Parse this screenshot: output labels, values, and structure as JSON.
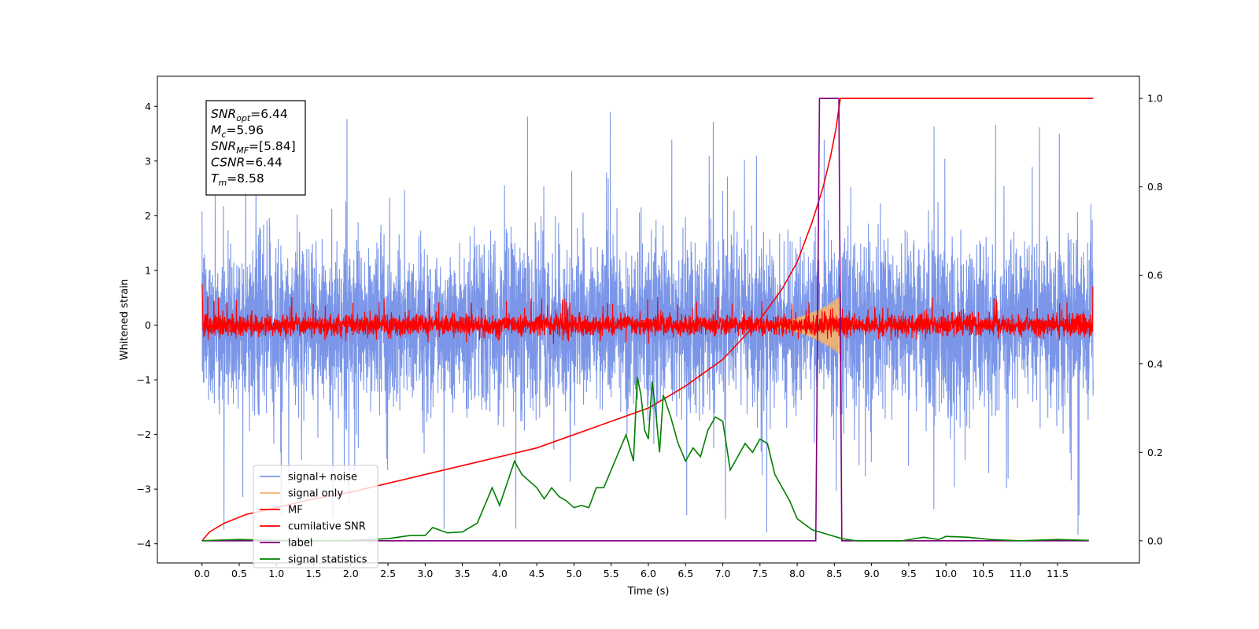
{
  "chart_data": {
    "type": "line",
    "title": "",
    "xlabel": "Time (s)",
    "ylabel": "Whitened strain",
    "xlim": [
      -0.6,
      12.6
    ],
    "ylim": [
      -4.35,
      4.55
    ],
    "y2lim": [
      -0.05,
      1.05
    ],
    "x_ticks": [
      0.0,
      0.5,
      1.0,
      1.5,
      2.0,
      2.5,
      3.0,
      3.5,
      4.0,
      4.5,
      5.0,
      5.5,
      6.0,
      6.5,
      7.0,
      7.5,
      8.0,
      8.5,
      9.0,
      9.5,
      10.0,
      10.5,
      11.0,
      11.5
    ],
    "x_tick_labels": [
      "0.0",
      "0.5",
      "1.0",
      "1.5",
      "2.0",
      "2.5",
      "3.0",
      "3.5",
      "4.0",
      "4.5",
      "5.0",
      "5.5",
      "6.0",
      "6.5",
      "7.0",
      "7.5",
      "8.0",
      "8.5",
      "9.0",
      "9.5",
      "10.0",
      "10.5",
      "11.0",
      "11.5"
    ],
    "y_ticks": [
      4,
      3,
      2,
      1,
      0,
      -1,
      -2,
      -3,
      -4
    ],
    "y_tick_labels": [
      "4",
      "3",
      "2",
      "1",
      "0",
      "−1",
      "−2",
      "−3",
      "−4"
    ],
    "y2_ticks": [
      1.0,
      0.8,
      0.6,
      0.4,
      0.2,
      0.0
    ],
    "y2_tick_labels": [
      "1.0",
      "0.8",
      "0.6",
      "0.4",
      "0.2",
      "0.0"
    ],
    "grid": false,
    "legend_position": "lower-left",
    "annotation": {
      "lines": [
        {
          "sym": "SNR",
          "sub": "opt",
          "value": "=6.44"
        },
        {
          "sym": "M",
          "sub": "c",
          "value": "=5.96"
        },
        {
          "sym": "SNR",
          "sub": "MF",
          "value": "=[5.84]"
        },
        {
          "sym": "CSNR",
          "sub": "",
          "value": "=6.44"
        },
        {
          "sym": "T",
          "sub": "m",
          "value": "=8.58"
        }
      ]
    },
    "series": [
      {
        "name": "signal+ noise",
        "axis": "left",
        "color": "#7b96e8",
        "kind": "noise",
        "x_range": [
          0.0,
          11.98
        ],
        "amplitude": 1.0,
        "peak_range": [
          -4.0,
          4.2
        ]
      },
      {
        "name": "signal only",
        "axis": "left",
        "color": "#f5b26b",
        "kind": "chirp",
        "x_range": [
          7.0,
          8.58
        ],
        "peak_amplitude": 0.55
      },
      {
        "name": "MF",
        "axis": "left",
        "color": "#ff0000",
        "kind": "noise",
        "x_range": [
          0.0,
          11.98
        ],
        "amplitude": 0.18,
        "peak_range": [
          -0.35,
          0.75
        ]
      },
      {
        "name": "cumilative SNR",
        "axis": "right",
        "color": "#ff0000",
        "x": [
          0.0,
          0.1,
          0.3,
          0.6,
          1.0,
          1.5,
          2.0,
          2.5,
          3.0,
          3.5,
          4.0,
          4.5,
          5.0,
          5.5,
          6.0,
          6.5,
          7.0,
          7.5,
          7.8,
          8.0,
          8.2,
          8.35,
          8.45,
          8.52,
          8.58,
          11.98
        ],
        "y": [
          0.0,
          0.02,
          0.04,
          0.06,
          0.075,
          0.095,
          0.11,
          0.13,
          0.15,
          0.17,
          0.19,
          0.21,
          0.24,
          0.27,
          0.3,
          0.35,
          0.41,
          0.5,
          0.57,
          0.63,
          0.72,
          0.8,
          0.87,
          0.93,
          1.0,
          1.0
        ]
      },
      {
        "name": "label",
        "axis": "right",
        "color": "#800080",
        "x": [
          0.0,
          8.25,
          8.3,
          8.56,
          8.6,
          11.92
        ],
        "y": [
          0.0,
          0.0,
          1.0,
          1.0,
          0.0,
          0.0
        ]
      },
      {
        "name": "signal statistics",
        "axis": "right",
        "color": "#008000",
        "x": [
          0.0,
          0.3,
          0.5,
          1.0,
          1.5,
          2.0,
          2.5,
          2.8,
          3.0,
          3.1,
          3.3,
          3.5,
          3.7,
          3.8,
          3.9,
          4.0,
          4.1,
          4.2,
          4.3,
          4.5,
          4.6,
          4.7,
          4.8,
          4.9,
          5.0,
          5.1,
          5.2,
          5.3,
          5.4,
          5.5,
          5.6,
          5.7,
          5.8,
          5.85,
          5.9,
          5.95,
          6.0,
          6.05,
          6.1,
          6.15,
          6.2,
          6.3,
          6.4,
          6.5,
          6.6,
          6.7,
          6.8,
          6.9,
          7.0,
          7.1,
          7.2,
          7.3,
          7.4,
          7.5,
          7.6,
          7.7,
          7.8,
          7.9,
          8.0,
          8.2,
          8.4,
          8.6,
          8.8,
          9.0,
          9.4,
          9.7,
          9.9,
          10.0,
          10.3,
          10.6,
          11.0,
          11.5,
          11.92
        ],
        "y": [
          0.0,
          0.002,
          0.003,
          0.001,
          0.0,
          0.001,
          0.005,
          0.012,
          0.012,
          0.03,
          0.018,
          0.02,
          0.04,
          0.08,
          0.12,
          0.08,
          0.13,
          0.18,
          0.15,
          0.12,
          0.095,
          0.12,
          0.1,
          0.09,
          0.075,
          0.08,
          0.075,
          0.12,
          0.12,
          0.16,
          0.2,
          0.24,
          0.18,
          0.37,
          0.33,
          0.25,
          0.23,
          0.36,
          0.29,
          0.2,
          0.33,
          0.28,
          0.22,
          0.18,
          0.21,
          0.19,
          0.25,
          0.28,
          0.27,
          0.16,
          0.19,
          0.22,
          0.2,
          0.23,
          0.22,
          0.15,
          0.12,
          0.09,
          0.05,
          0.025,
          0.015,
          0.005,
          0.0,
          0.0,
          0.0,
          0.008,
          0.003,
          0.01,
          0.008,
          0.003,
          0.0,
          0.003,
          0.001
        ]
      }
    ]
  }
}
